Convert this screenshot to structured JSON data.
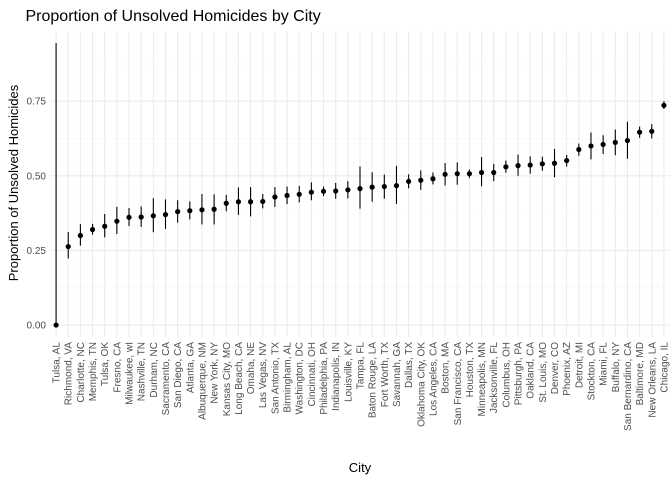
{
  "chart_data": {
    "type": "scatter",
    "title": "Proportion of Unsolved Homicides by City",
    "xlabel": "City",
    "ylabel": "Proportion of Unsolved Homicides",
    "ylim": [
      -0.04,
      0.985
    ],
    "yticks": [
      0,
      0.25,
      0.5,
      0.75
    ],
    "ytick_labels": [
      "0.00",
      "0.25",
      "0.50",
      "0.75"
    ],
    "grid": true,
    "point_color": "#000000",
    "categories": [
      "Tulsa, AL",
      "Richmond, VA",
      "Charlotte, NC",
      "Memphis, TN",
      "Tulsa, OK",
      "Fresno, CA",
      "Milwaukee, wI",
      "Nashville, TN",
      "Durham, NC",
      "Sacramento, CA",
      "San Diego, CA",
      "Atlanta, GA",
      "Albuquerque, NM",
      "New York, NY",
      "Kansas City, MO",
      "Long Beach, CA",
      "Omaha, NE",
      "Las Vegas, NV",
      "San Antonio, TX",
      "Birmingham, AL",
      "Washington, DC",
      "Cincinnati, OH",
      "Philadelphia, PA",
      "Indianapolis, IN",
      "Louisville, KY",
      "Tampa, FL",
      "Baton Rouge, LA",
      "Fort Worth, TX",
      "Savannah, GA",
      "Dallas, TX",
      "Oklahoma City, OK",
      "Los Angeles, CA",
      "Boston, MA",
      "San Francisco, CA",
      "Houston, TX",
      "Minneapolis, MN",
      "Jacksonville, FL",
      "Columbus, OH",
      "Pittsburgh, PA",
      "Oakland, CA",
      "St. Louis, MO",
      "Denver, CO",
      "Phoenix, AZ",
      "Detroit, MI",
      "Stockton, CA",
      "Miami, FL",
      "Buffalo, NY",
      "San Bernardino, CA",
      "Baltimore, MD",
      "New Orleans, LA",
      "Chicago, IL"
    ],
    "estimate": [
      0.0,
      0.263,
      0.3,
      0.32,
      0.331,
      0.348,
      0.361,
      0.362,
      0.366,
      0.37,
      0.38,
      0.383,
      0.386,
      0.388,
      0.408,
      0.413,
      0.413,
      0.414,
      0.429,
      0.434,
      0.438,
      0.445,
      0.448,
      0.449,
      0.453,
      0.457,
      0.462,
      0.464,
      0.467,
      0.481,
      0.485,
      0.49,
      0.505,
      0.507,
      0.507,
      0.511,
      0.511,
      0.53,
      0.534,
      0.536,
      0.54,
      0.542,
      0.551,
      0.588,
      0.6,
      0.605,
      0.612,
      0.618,
      0.646,
      0.649,
      0.736
    ],
    "lower": [
      0.0,
      0.223,
      0.266,
      0.303,
      0.294,
      0.305,
      0.332,
      0.329,
      0.311,
      0.322,
      0.343,
      0.354,
      0.337,
      0.337,
      0.381,
      0.369,
      0.364,
      0.391,
      0.396,
      0.405,
      0.411,
      0.418,
      0.432,
      0.423,
      0.424,
      0.39,
      0.413,
      0.423,
      0.406,
      0.458,
      0.453,
      0.471,
      0.468,
      0.47,
      0.493,
      0.465,
      0.482,
      0.51,
      0.5,
      0.507,
      0.517,
      0.495,
      0.531,
      0.567,
      0.555,
      0.573,
      0.569,
      0.557,
      0.627,
      0.625,
      0.724
    ],
    "upper": [
      0.945,
      0.312,
      0.338,
      0.339,
      0.372,
      0.396,
      0.392,
      0.397,
      0.425,
      0.421,
      0.418,
      0.414,
      0.439,
      0.438,
      0.436,
      0.461,
      0.462,
      0.439,
      0.462,
      0.464,
      0.466,
      0.478,
      0.464,
      0.476,
      0.482,
      0.531,
      0.512,
      0.504,
      0.533,
      0.505,
      0.518,
      0.511,
      0.543,
      0.545,
      0.521,
      0.563,
      0.54,
      0.551,
      0.571,
      0.565,
      0.564,
      0.59,
      0.57,
      0.608,
      0.645,
      0.636,
      0.655,
      0.681,
      0.665,
      0.673,
      0.75
    ]
  }
}
